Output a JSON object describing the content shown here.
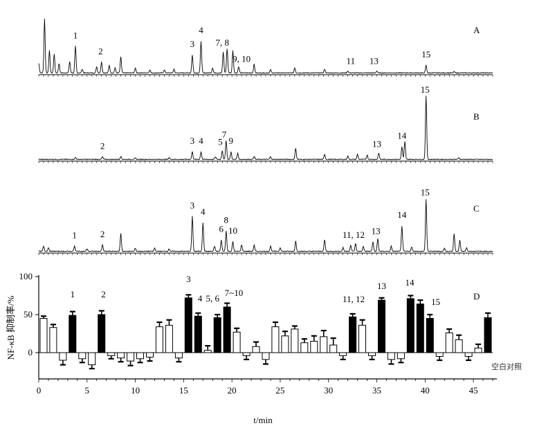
{
  "chart_data": [
    {
      "type": "line",
      "panel_label": "A",
      "peak_labels": [
        {
          "text": "1",
          "t": 3.8
        },
        {
          "text": "2",
          "t": 6.4
        },
        {
          "text": "3",
          "t": 15.9
        },
        {
          "text": "4",
          "t": 16.8
        },
        {
          "text": "7, 8",
          "t": 19.0
        },
        {
          "text": "9, 10",
          "t": 21.0
        },
        {
          "text": "11",
          "t": 32.3
        },
        {
          "text": "13",
          "t": 34.7
        },
        {
          "text": "15",
          "t": 40.1
        }
      ],
      "xlim": [
        0,
        47
      ],
      "description_peaks_rel": [
        [
          0.0,
          0.15
        ],
        [
          0.6,
          0.85
        ],
        [
          1.1,
          0.35
        ],
        [
          1.6,
          0.3
        ],
        [
          2.1,
          0.15
        ],
        [
          3.2,
          0.18
        ],
        [
          3.8,
          0.42
        ],
        [
          4.5,
          0.06
        ],
        [
          6.0,
          0.1
        ],
        [
          6.5,
          0.18
        ],
        [
          7.3,
          0.12
        ],
        [
          7.9,
          0.08
        ],
        [
          8.5,
          0.25
        ],
        [
          10.0,
          0.08
        ],
        [
          11.5,
          0.05
        ],
        [
          13.0,
          0.05
        ],
        [
          14.0,
          0.06
        ],
        [
          15.9,
          0.28
        ],
        [
          16.8,
          0.5
        ],
        [
          18.0,
          0.08
        ],
        [
          19.1,
          0.33
        ],
        [
          19.5,
          0.38
        ],
        [
          20.1,
          0.35
        ],
        [
          20.7,
          0.1
        ],
        [
          22.3,
          0.14
        ],
        [
          24.0,
          0.05
        ],
        [
          26.5,
          0.08
        ],
        [
          29.6,
          0.06
        ],
        [
          32.0,
          0.03
        ],
        [
          35.0,
          0.03
        ],
        [
          40.1,
          0.12
        ],
        [
          43.0,
          0.02
        ]
      ]
    },
    {
      "type": "line",
      "panel_label": "B",
      "peak_labels": [
        {
          "text": "2",
          "t": 6.6
        },
        {
          "text": "3",
          "t": 15.9
        },
        {
          "text": "4",
          "t": 16.8
        },
        {
          "text": "7",
          "t": 19.2
        },
        {
          "text": "5",
          "t": 18.8
        },
        {
          "text": "9",
          "t": 19.9
        },
        {
          "text": "13",
          "t": 35.0
        },
        {
          "text": "14",
          "t": 37.6
        },
        {
          "text": "15",
          "t": 40.0
        }
      ],
      "xlim": [
        0,
        47
      ],
      "description_peaks_rel": [
        [
          3.8,
          0.03
        ],
        [
          6.6,
          0.04
        ],
        [
          8.5,
          0.05
        ],
        [
          10.0,
          0.02
        ],
        [
          13.5,
          0.03
        ],
        [
          15.9,
          0.12
        ],
        [
          16.8,
          0.12
        ],
        [
          18.3,
          0.04
        ],
        [
          19.0,
          0.14
        ],
        [
          19.4,
          0.3
        ],
        [
          19.9,
          0.12
        ],
        [
          20.6,
          0.1
        ],
        [
          22.3,
          0.05
        ],
        [
          24.0,
          0.04
        ],
        [
          26.6,
          0.18
        ],
        [
          29.6,
          0.08
        ],
        [
          32.0,
          0.05
        ],
        [
          33.0,
          0.08
        ],
        [
          34.0,
          0.07
        ],
        [
          35.2,
          0.1
        ],
        [
          37.6,
          0.2
        ],
        [
          37.9,
          0.28
        ],
        [
          40.1,
          1.0
        ],
        [
          43.5,
          0.03
        ]
      ]
    },
    {
      "type": "line",
      "panel_label": "C",
      "peak_labels": [
        {
          "text": "1",
          "t": 3.7
        },
        {
          "text": "2",
          "t": 6.6
        },
        {
          "text": "3",
          "t": 15.9
        },
        {
          "text": "4",
          "t": 17.0
        },
        {
          "text": "8",
          "t": 19.4
        },
        {
          "text": "6",
          "t": 18.9
        },
        {
          "text": "10",
          "t": 20.1
        },
        {
          "text": "11, 12",
          "t": 32.6
        },
        {
          "text": "13",
          "t": 34.9
        },
        {
          "text": "14",
          "t": 37.6
        },
        {
          "text": "15",
          "t": 40.0
        }
      ],
      "xlim": [
        0,
        47
      ],
      "description_peaks_rel": [
        [
          0.5,
          0.08
        ],
        [
          1.0,
          0.06
        ],
        [
          3.7,
          0.08
        ],
        [
          5.0,
          0.04
        ],
        [
          6.6,
          0.1
        ],
        [
          8.5,
          0.28
        ],
        [
          10.0,
          0.05
        ],
        [
          12.0,
          0.05
        ],
        [
          13.5,
          0.04
        ],
        [
          15.9,
          0.55
        ],
        [
          17.0,
          0.45
        ],
        [
          18.2,
          0.08
        ],
        [
          18.9,
          0.18
        ],
        [
          19.4,
          0.32
        ],
        [
          20.1,
          0.15
        ],
        [
          21.0,
          0.1
        ],
        [
          22.3,
          0.1
        ],
        [
          24.0,
          0.08
        ],
        [
          25.0,
          0.06
        ],
        [
          26.6,
          0.16
        ],
        [
          29.6,
          0.18
        ],
        [
          31.5,
          0.06
        ],
        [
          32.3,
          0.1
        ],
        [
          32.8,
          0.12
        ],
        [
          33.6,
          0.08
        ],
        [
          34.6,
          0.15
        ],
        [
          35.1,
          0.2
        ],
        [
          36.5,
          0.08
        ],
        [
          37.6,
          0.4
        ],
        [
          38.6,
          0.07
        ],
        [
          40.1,
          0.82
        ],
        [
          42.0,
          0.05
        ],
        [
          43.0,
          0.28
        ],
        [
          43.6,
          0.18
        ],
        [
          44.3,
          0.06
        ]
      ]
    },
    {
      "type": "bar",
      "panel_label": "D",
      "xlabel": "t/min",
      "ylabel": "NF-κB 抑制率/%",
      "ylim": [
        -20,
        100
      ],
      "xlim": [
        0,
        47
      ],
      "xticks": [
        0,
        5,
        10,
        15,
        20,
        25,
        30,
        35,
        40,
        45
      ],
      "yticks": [
        100,
        50,
        0
      ],
      "blank_control_label": "空白对照",
      "peak_labels": [
        {
          "text": "1",
          "t": 3.5
        },
        {
          "text": "2",
          "t": 6.7
        },
        {
          "text": "3",
          "t": 15.5
        },
        {
          "text": "4",
          "t": 16.7
        },
        {
          "text": "5, 6",
          "t": 18.0
        },
        {
          "text": "7~10",
          "t": 20.2
        },
        {
          "text": "11, 12",
          "t": 32.6
        },
        {
          "text": "13",
          "t": 35.5
        },
        {
          "text": "14",
          "t": 38.4
        },
        {
          "text": "15",
          "t": 41.1
        }
      ],
      "bars": [
        {
          "t": 0.5,
          "value": 45,
          "err": 3,
          "filled": false
        },
        {
          "t": 1.5,
          "value": 33,
          "err": 4,
          "filled": false
        },
        {
          "t": 2.5,
          "value": -10,
          "err": 6,
          "filled": false
        },
        {
          "t": 3.5,
          "value": 49,
          "err": 5,
          "filled": true
        },
        {
          "t": 4.5,
          "value": -8,
          "err": 5,
          "filled": false
        },
        {
          "t": 5.5,
          "value": -16,
          "err": 5,
          "filled": false
        },
        {
          "t": 6.5,
          "value": 50,
          "err": 5,
          "filled": true
        },
        {
          "t": 7.5,
          "value": -4,
          "err": 4,
          "filled": false
        },
        {
          "t": 8.5,
          "value": -7,
          "err": 5,
          "filled": false
        },
        {
          "t": 9.5,
          "value": -11,
          "err": 6,
          "filled": false
        },
        {
          "t": 10.5,
          "value": -8,
          "err": 5,
          "filled": false
        },
        {
          "t": 11.5,
          "value": -6,
          "err": 5,
          "filled": false
        },
        {
          "t": 12.5,
          "value": 34,
          "err": 6,
          "filled": false
        },
        {
          "t": 13.5,
          "value": 36,
          "err": 7,
          "filled": false
        },
        {
          "t": 14.5,
          "value": -7,
          "err": 5,
          "filled": false
        },
        {
          "t": 15.5,
          "value": 72,
          "err": 4,
          "filled": true
        },
        {
          "t": 16.5,
          "value": 48,
          "err": 4,
          "filled": true
        },
        {
          "t": 17.5,
          "value": 3,
          "err": 6,
          "filled": false
        },
        {
          "t": 18.5,
          "value": 46,
          "err": 4,
          "filled": true
        },
        {
          "t": 19.5,
          "value": 60,
          "err": 5,
          "filled": true
        },
        {
          "t": 20.5,
          "value": 27,
          "err": 5,
          "filled": false
        },
        {
          "t": 21.5,
          "value": -4,
          "err": 5,
          "filled": false
        },
        {
          "t": 22.5,
          "value": 8,
          "err": 6,
          "filled": false
        },
        {
          "t": 23.5,
          "value": -9,
          "err": 6,
          "filled": false
        },
        {
          "t": 24.5,
          "value": 34,
          "err": 6,
          "filled": false
        },
        {
          "t": 25.5,
          "value": 22,
          "err": 6,
          "filled": false
        },
        {
          "t": 26.5,
          "value": 31,
          "err": 4,
          "filled": false
        },
        {
          "t": 27.5,
          "value": 13,
          "err": 5,
          "filled": false
        },
        {
          "t": 28.5,
          "value": 15,
          "err": 7,
          "filled": false
        },
        {
          "t": 29.5,
          "value": 21,
          "err": 8,
          "filled": false
        },
        {
          "t": 30.5,
          "value": 10,
          "err": 9,
          "filled": false
        },
        {
          "t": 31.5,
          "value": -4,
          "err": 5,
          "filled": false
        },
        {
          "t": 32.5,
          "value": 47,
          "err": 4,
          "filled": true
        },
        {
          "t": 33.5,
          "value": 36,
          "err": 7,
          "filled": false
        },
        {
          "t": 34.5,
          "value": -4,
          "err": 5,
          "filled": false
        },
        {
          "t": 35.5,
          "value": 69,
          "err": 3,
          "filled": true
        },
        {
          "t": 36.5,
          "value": -9,
          "err": 6,
          "filled": false
        },
        {
          "t": 37.5,
          "value": -8,
          "err": 5,
          "filled": false
        },
        {
          "t": 38.5,
          "value": 71,
          "err": 4,
          "filled": true
        },
        {
          "t": 39.5,
          "value": 64,
          "err": 5,
          "filled": true
        },
        {
          "t": 40.5,
          "value": 45,
          "err": 5,
          "filled": true
        },
        {
          "t": 41.5,
          "value": -5,
          "err": 5,
          "filled": false
        },
        {
          "t": 42.5,
          "value": 26,
          "err": 5,
          "filled": false
        },
        {
          "t": 43.5,
          "value": 17,
          "err": 6,
          "filled": false
        },
        {
          "t": 44.5,
          "value": -5,
          "err": 5,
          "filled": false
        },
        {
          "t": 45.5,
          "value": 6,
          "err": 5,
          "filled": false
        },
        {
          "t": 46.5,
          "value": 46,
          "err": 6,
          "filled": true
        }
      ]
    }
  ]
}
